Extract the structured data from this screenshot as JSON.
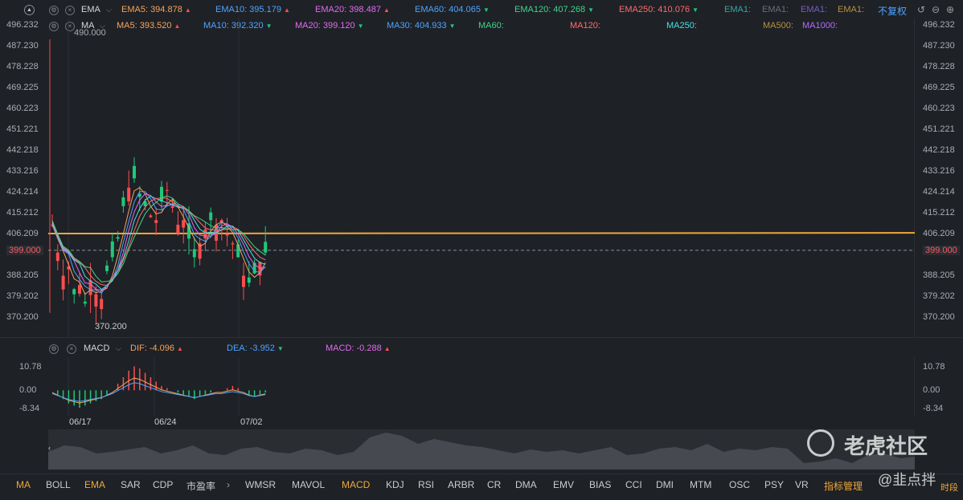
{
  "ema_legend": {
    "indicator_name": "EMA",
    "items": [
      {
        "label": "EMA5: 394.878",
        "trend": "▲",
        "color": "#f7a35c"
      },
      {
        "label": "EMA10: 395.179",
        "trend": "▲",
        "color": "#4fa3ff"
      },
      {
        "label": "EMA20: 398.487",
        "trend": "▲",
        "color": "#e36bf0"
      },
      {
        "label": "EMA60: 404.065",
        "trend": "▼",
        "color": "#4fa3ff"
      },
      {
        "label": "EMA120: 407.268",
        "trend": "▼",
        "color": "#40d58a"
      },
      {
        "label": "EMA250: 410.076",
        "trend": "▼",
        "color": "#ff6b6b"
      },
      {
        "label": "EMA1:",
        "trend": "",
        "color": "#3aa5a0"
      },
      {
        "label": "EMA1:",
        "trend": "",
        "color": "#6b6f76"
      },
      {
        "label": "EMA1:",
        "trend": "",
        "color": "#7a5cc4"
      },
      {
        "label": "EMA1:",
        "trend": "",
        "color": "#b8923a"
      }
    ],
    "adjust_label": "不复权"
  },
  "ma_legend": {
    "indicator_name": "MA",
    "items": [
      {
        "label": "MA5: 393.520",
        "trend": "▲",
        "color": "#f7a35c"
      },
      {
        "label": "MA10: 392.320",
        "trend": "▼",
        "color": "#4fa3ff"
      },
      {
        "label": "MA20: 399.120",
        "trend": "▼",
        "color": "#e36bf0"
      },
      {
        "label": "MA30: 404.933",
        "trend": "▼",
        "color": "#4fa3ff"
      },
      {
        "label": "MA60:",
        "trend": "",
        "color": "#40d58a"
      },
      {
        "label": "MA120:",
        "trend": "",
        "color": "#ff6b6b"
      },
      {
        "label": "MA250:",
        "trend": "",
        "color": "#46e0e6"
      },
      {
        "label": "MA500:",
        "trend": "",
        "color": "#b8923a"
      },
      {
        "label": "MA1000:",
        "trend": "",
        "color": "#b36bff"
      }
    ]
  },
  "price_axis": {
    "ticks": [
      "496.232",
      "487.230",
      "478.228",
      "469.225",
      "460.223",
      "451.221",
      "442.218",
      "433.216",
      "424.214",
      "415.212",
      "406.209",
      "399.000",
      "388.205",
      "379.202",
      "370.200"
    ],
    "current_price": "399.000",
    "high_label": "490.000",
    "low_label": "370.200"
  },
  "macd_legend": {
    "indicator_name": "MACD",
    "items": [
      {
        "label": "DIF: -4.096",
        "trend": "▲",
        "color": "#f7a35c"
      },
      {
        "label": "DEA: -3.952",
        "trend": "▼",
        "color": "#4fa3ff"
      },
      {
        "label": "MACD: -0.288",
        "trend": "▲",
        "color": "#e36bf0"
      }
    ],
    "ticks": [
      "10.78",
      "0.00",
      "-8.34"
    ]
  },
  "dates": [
    "06/17",
    "06/24",
    "07/02"
  ],
  "bottom_tabs": [
    "MA",
    "BOLL",
    "EMA",
    "SAR",
    "CDP",
    "市盈率",
    "WMSR",
    "MAVOL",
    "MACD",
    "KDJ",
    "RSI",
    "ARBR",
    "CR",
    "DMA",
    "EMV",
    "BIAS",
    "CCI",
    "DMI",
    "MTM",
    "OSC",
    "PSY",
    "VR"
  ],
  "active_tabs": [
    "MA",
    "EMA",
    "MACD"
  ],
  "manage_label": "指标管理",
  "time_label": "时段",
  "watermark": {
    "brand": "老虎社区",
    "user": "@韭点拌"
  },
  "colors": {
    "up": "#ff4d4f",
    "down": "#1ec97a",
    "accent": "#f0a83a"
  }
}
